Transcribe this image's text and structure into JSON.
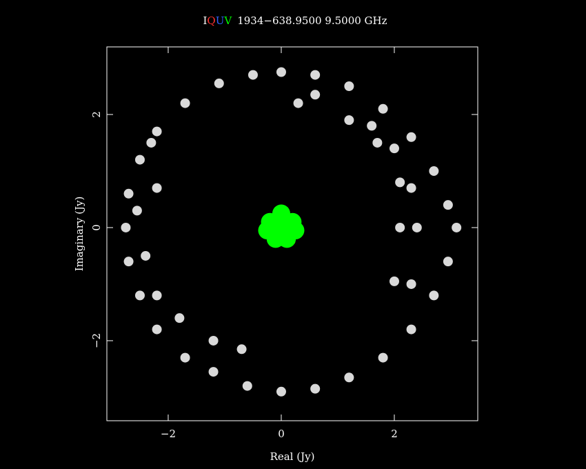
{
  "chart_data": {
    "type": "scatter",
    "source": "1934−638.9500 9.5000 GHz",
    "x_label": "Real (Jy)",
    "y_label": "Imaginary (Jy)",
    "xlim": [
      -3.085,
      3.476
    ],
    "ylim": [
      -3.415,
      3.195
    ],
    "xticks": [
      {
        "value": -2,
        "label": "−2"
      },
      0,
      2
    ],
    "yticks": [
      {
        "value": -2,
        "label": "−2"
      },
      0,
      2
    ],
    "series": [
      {
        "name": "I",
        "color": "#ffffff",
        "x": [
          0,
          0.6,
          1.2,
          1.8,
          2.3,
          2.7,
          2.95,
          3.1,
          2.95,
          2.7,
          2.3,
          1.8,
          1.2,
          0.6,
          0,
          -0.6,
          -1.2,
          -1.7,
          -2.2,
          -2.5,
          -2.7,
          -2.75,
          -2.7,
          -2.5,
          -2.2,
          -1.7,
          -1.1,
          -0.5,
          0.3,
          0.6,
          1.2,
          1.6,
          1.7,
          2.0,
          2.1,
          2.3,
          2.1,
          2.4,
          2.0,
          2.3,
          -2.3,
          -2.2,
          -2.2,
          -1.8,
          -1.2,
          -0.7,
          -2.55,
          -2.4
        ],
        "values": [
          2.75,
          2.7,
          2.5,
          2.1,
          1.6,
          1.0,
          0.4,
          0,
          -0.6,
          -1.2,
          -1.8,
          -2.3,
          -2.65,
          -2.85,
          -2.9,
          -2.8,
          -2.55,
          -2.3,
          -1.8,
          -1.2,
          -0.6,
          0,
          0.6,
          1.2,
          1.7,
          2.2,
          2.55,
          2.7,
          2.2,
          2.35,
          1.9,
          1.8,
          1.5,
          1.4,
          0.8,
          0.7,
          0.0,
          0.0,
          -0.95,
          -1.0,
          1.5,
          0.7,
          -1.2,
          -1.6,
          -2.0,
          -2.15,
          0.3,
          -0.5
        ]
      },
      {
        "name": "Q",
        "color": "#ff3030",
        "x": [
          0.05,
          0.2
        ],
        "values": [
          0.3,
          -0.25
        ]
      },
      {
        "name": "U",
        "color": "#3060ff",
        "x": [
          -0.15,
          0.3
        ],
        "values": [
          0.2,
          -0.1
        ]
      },
      {
        "name": "V",
        "color": "#00ff00",
        "x": [
          0,
          0.2,
          -0.2,
          0.1,
          -0.1,
          0.25,
          -0.25,
          0
        ],
        "values": [
          0,
          0.1,
          0.1,
          -0.2,
          -0.2,
          -0.05,
          -0.05,
          0.25
        ]
      }
    ]
  }
}
